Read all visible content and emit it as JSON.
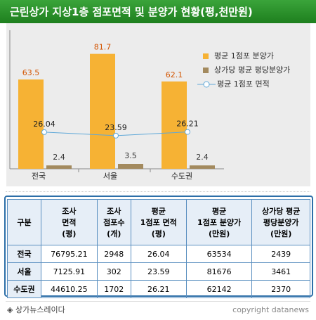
{
  "title": "근린상가 지상1층 점포면적 및 분양가 현황(평,천만원)",
  "chart_data": {
    "type": "bar",
    "categories": [
      "전국",
      "서울",
      "수도권"
    ],
    "series": [
      {
        "name": "평균 1점포 분양가",
        "kind": "bar",
        "values": [
          63.5,
          81.7,
          62.1
        ],
        "color": "#f6b234"
      },
      {
        "name": "상가당 평균 평당분양가",
        "kind": "bar",
        "values": [
          2.4,
          3.5,
          2.4
        ],
        "color": "#a38a5e"
      },
      {
        "name": "평균 1점포 면적",
        "kind": "line",
        "values": [
          26.04,
          23.59,
          26.21
        ],
        "color": "#5fa8d8"
      }
    ],
    "labels_bar1": [
      "63.5",
      "81.7",
      "62.1"
    ],
    "labels_bar2": [
      "2.4",
      "3.5",
      "2.4"
    ],
    "labels_line": [
      "26.04",
      "23.59",
      "26.21"
    ],
    "ylim": [
      0,
      90
    ],
    "grid": false,
    "legend_position": "top-right"
  },
  "table": {
    "headers": [
      "구분",
      "조사\n면적\n(평)",
      "조사\n점포수\n(개)",
      "평균\n1점포 면적\n(평)",
      "평균\n1점포 분양가\n(만원)",
      "상가당 평균\n평당분양가\n(만원)"
    ],
    "rows": [
      [
        "전국",
        "76795.21",
        "2948",
        "26.04",
        "63534",
        "2439"
      ],
      [
        "서울",
        "7125.91",
        "302",
        "23.59",
        "81676",
        "3461"
      ],
      [
        "수도권",
        "44610.25",
        "1702",
        "26.21",
        "62142",
        "2370"
      ]
    ]
  },
  "footer": {
    "brand": "◈ 상가뉴스레이다",
    "copyright": "copyright datanews"
  }
}
